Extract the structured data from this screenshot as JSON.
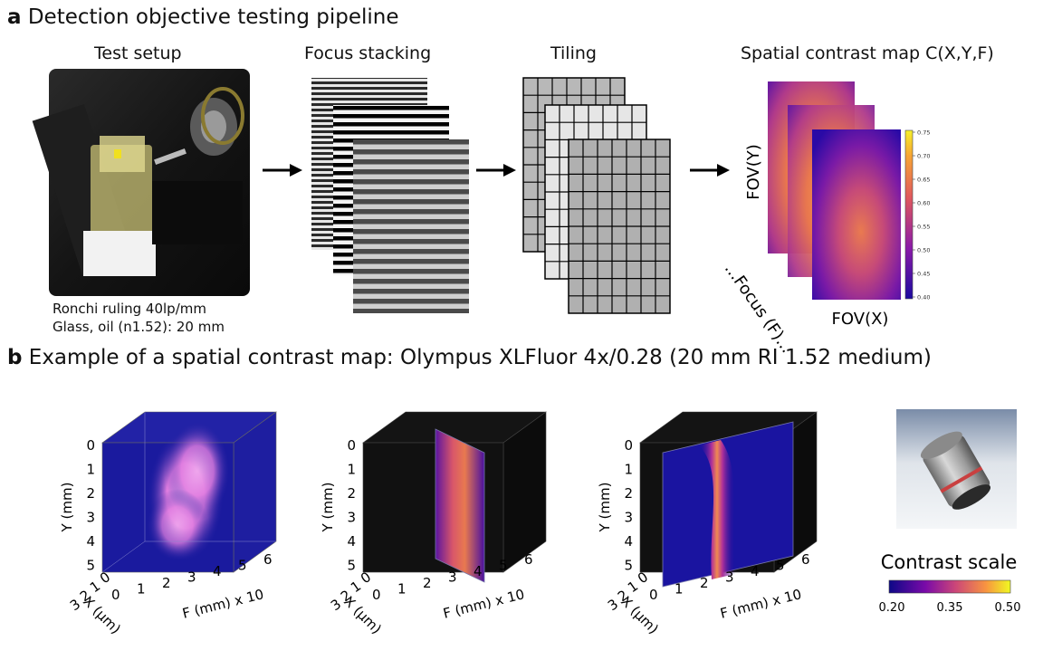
{
  "section_a": {
    "letter": "a",
    "title": "Detection objective testing pipeline",
    "columns": {
      "test_setup": "Test setup",
      "focus_stacking": "Focus stacking",
      "tiling": "Tiling",
      "contrast_map": "Spatial contrast map C(X,Y,F)"
    },
    "setup_caption_1": "Ronchi ruling 40lp/mm",
    "setup_caption_2": "Glass, oil (n1.52): 20 mm",
    "map_axes": {
      "y": "FOV(Y)",
      "x": "FOV(X)",
      "focus": "...Focus (F)..."
    },
    "colorbar_ticks": [
      "0.75",
      "0.70",
      "0.65",
      "0.60",
      "0.55",
      "0.50",
      "0.45",
      "0.40"
    ]
  },
  "section_b": {
    "letter": "b",
    "title": "Example of a spatial contrast map: Olympus XLFluor 4x/0.28 (20 mm RI 1.52 medium)",
    "plot_axes": {
      "y_label": "Y (mm)",
      "x_label": "X (µm)",
      "f_label": "F (mm) x 10",
      "y_ticks": [
        "0",
        "1",
        "2",
        "3",
        "4",
        "5"
      ],
      "x_ticks": [
        "0",
        "1",
        "2",
        "3"
      ],
      "f_ticks": [
        "0",
        "1",
        "2",
        "3",
        "4",
        "5",
        "6"
      ]
    },
    "contrast_scale": {
      "title": "Contrast scale",
      "ticks": [
        "0.20",
        "0.35",
        "0.50"
      ]
    },
    "colors": {
      "background_blue": "#1a1a9e",
      "magenta": "#e88ae8",
      "dark_panel": "#111111"
    }
  }
}
